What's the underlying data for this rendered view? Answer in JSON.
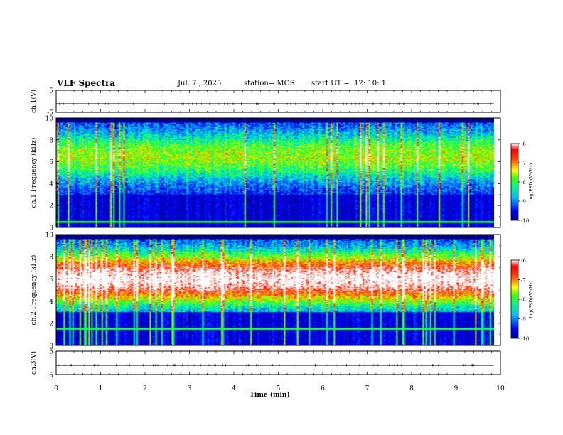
{
  "header": {
    "title": "VLF Spectra",
    "date": "Jul. 7 , 2025",
    "station": "station= MOS",
    "start": "start UT =  12: 10: 1"
  },
  "chart_data": {
    "type": "heatmap",
    "title": "VLF Spectra",
    "xlabel": "Time (min)",
    "x_ticks": [
      "0",
      "1",
      "2",
      "3",
      "4",
      "5",
      "6",
      "7",
      "8",
      "9",
      "10"
    ],
    "xlim": [
      0,
      10
    ],
    "data_end_min": 9.85,
    "panels": [
      {
        "id": "ch1-voltage",
        "kind": "line",
        "ylabel": "ch.1(V)",
        "ylim": [
          -5,
          5
        ],
        "y_ticks": [
          "5",
          "-5"
        ],
        "level": -1.2
      },
      {
        "id": "ch1-spectrogram",
        "kind": "spectrogram",
        "ylabel": "ch.1 Frequency (kHz)",
        "ylim": [
          0,
          10
        ],
        "y_ticks": [
          "0",
          "2",
          "4",
          "6",
          "8",
          "10"
        ],
        "band_center_khz": 6.5,
        "band_intensity": 0.45,
        "band_lower_edge_khz": 3.0,
        "line_khz": 0.5,
        "colorbar": {
          "label": "log(PSD)(V²/Hz)",
          "range": [
            -10,
            -6
          ],
          "ticks": [
            "-6",
            "-7",
            "-8",
            "-9",
            "-10"
          ]
        }
      },
      {
        "id": "ch2-spectrogram",
        "kind": "spectrogram",
        "ylabel": "ch.2 Frequency (kHz)",
        "ylim": [
          0,
          10
        ],
        "y_ticks": [
          "0",
          "2",
          "4",
          "6",
          "8",
          "10"
        ],
        "band_center_khz": 6.0,
        "band_intensity": 0.85,
        "band_lower_edge_khz": 3.0,
        "line_khz": 1.5,
        "colorbar": {
          "label": "log(PSD)(V²/Hz)",
          "range": [
            -10,
            -6
          ],
          "ticks": [
            "-6",
            "-7",
            "-8",
            "-9",
            "-10"
          ]
        }
      },
      {
        "id": "ch3-voltage",
        "kind": "line",
        "ylabel": "ch.3(V)",
        "ylim": [
          -5,
          5
        ],
        "y_ticks": [
          "5",
          "-5"
        ],
        "level": -1.0
      }
    ]
  }
}
